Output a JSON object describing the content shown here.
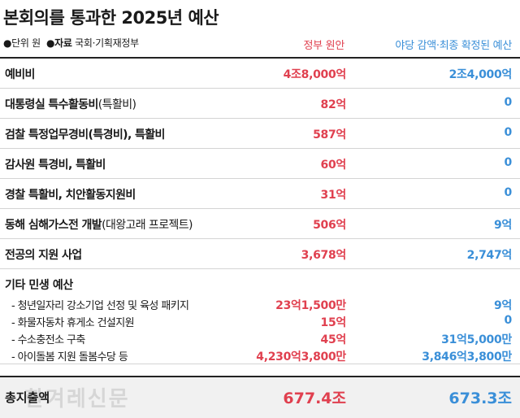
{
  "title": "본회의를 통과한 2025년 예산",
  "meta": {
    "unit_label": "단위",
    "unit_value": "원",
    "source_label": "자료",
    "source_value": "국회·기획재정부"
  },
  "columns": {
    "government": "정부 원안",
    "final": "야당 감액·최종 확정된 예산"
  },
  "colors": {
    "government": "#e0404f",
    "final": "#3a8fd8",
    "rule": "#222222"
  },
  "watermark": "한겨레신문",
  "chart_data": {
    "type": "table",
    "title": "본회의를 통과한 2025년 예산",
    "unit": "원",
    "source": "국회·기획재정부",
    "columns": [
      "정부 원안",
      "야당 감액·최종 확정된 예산"
    ],
    "rows": [
      {
        "label": "예비비",
        "paren": "",
        "government": "4조8,000억",
        "final": "2조4,000억"
      },
      {
        "label": "대통령실 특수활동비",
        "paren": "(특활비)",
        "government": "82억",
        "final": "0"
      },
      {
        "label": "검찰 특정업무경비",
        "paren": "(특경비), 특활비",
        "government": "587억",
        "final": "0"
      },
      {
        "label": "감사원 특경비, 특활비",
        "paren": "",
        "government": "60억",
        "final": "0"
      },
      {
        "label": "경찰 특활비, 치안활동지원비",
        "paren": "",
        "government": "31억",
        "final": "0"
      },
      {
        "label": "동해 심해가스전 개발",
        "paren": "(대왕고래 프로젝트)",
        "government": "506억",
        "final": "9억"
      },
      {
        "label": "전공의 지원 사업",
        "paren": "",
        "government": "3,678억",
        "final": "2,747억"
      }
    ],
    "group": {
      "label": "기타 민생 예산",
      "items": [
        {
          "label": "- 청년일자리 강소기업 선정 및 육성 패키지",
          "government": "23억1,500만",
          "final": "9억"
        },
        {
          "label": "- 화물자동차 휴게소 건설지원",
          "government": "15억",
          "final": "0"
        },
        {
          "label": "- 수소충전소 구축",
          "government": "45억",
          "final": "31억5,000만"
        },
        {
          "label": "- 아이돌봄 지원 돌봄수당 등",
          "government": "4,230억3,800만",
          "final": "3,846억3,800만"
        }
      ]
    },
    "total": {
      "label": "총지출액",
      "government": "677.4조",
      "final": "673.3조"
    }
  }
}
